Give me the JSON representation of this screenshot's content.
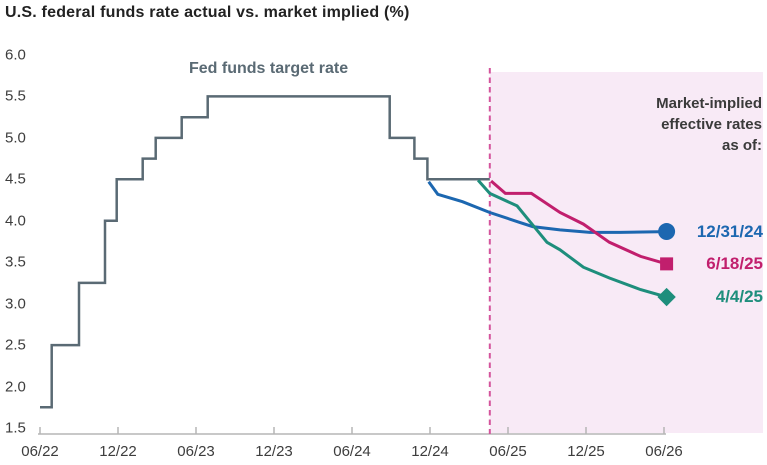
{
  "title": "U.S. federal funds rate actual vs. market implied (%)",
  "annotations": {
    "step_line_label": "Fed funds target rate",
    "forecast_heading": "Market-implied\neffective rates\nas of:"
  },
  "colors": {
    "title_text": "#222222",
    "tick_text": "#3d3d3d",
    "heading_text": "#3a3a3a",
    "step_line": "#5a6a74",
    "axis": "#b5b5b5",
    "forecast_shading": "#f8eaf6",
    "forecast_divider": "#d4549c",
    "blue_series": "#1c67b0",
    "magenta_series": "#c11f6d",
    "teal_series": "#1e8e7c"
  },
  "chart_data": {
    "type": "line",
    "title": "U.S. federal funds rate actual vs. market implied (%)",
    "xlabel": "",
    "ylabel": "",
    "grid": false,
    "ylim": [
      1.5,
      6.0
    ],
    "y_tick_labels": [
      "6.0",
      "5.5",
      "5.0",
      "4.5",
      "4.0",
      "3.5",
      "3.0",
      "2.5",
      "2.0",
      "1.5"
    ],
    "y_tick_values": [
      6.0,
      5.5,
      5.0,
      4.5,
      4.0,
      3.5,
      3.0,
      2.5,
      2.0,
      1.5
    ],
    "x_tick_labels": [
      "06/22",
      "12/22",
      "06/23",
      "12/23",
      "06/24",
      "12/24",
      "06/25",
      "12/25",
      "06/26"
    ],
    "x_tick_months": [
      0,
      6,
      12,
      18,
      24,
      30,
      36,
      42,
      48
    ],
    "x_unit": "months since 06/22 tick",
    "forecast_region_start_month": 34.6,
    "series": [
      {
        "name": "Fed funds target rate",
        "style": "step",
        "color": "#5a6a74",
        "marker": "none",
        "points": [
          [
            0,
            1.75
          ],
          [
            0.9,
            2.5
          ],
          [
            3.0,
            3.25
          ],
          [
            5.0,
            4.0
          ],
          [
            5.9,
            4.5
          ],
          [
            7.9,
            4.75
          ],
          [
            8.9,
            5.0
          ],
          [
            10.9,
            5.25
          ],
          [
            12.9,
            5.5
          ],
          [
            26.9,
            5.0
          ],
          [
            28.8,
            4.75
          ],
          [
            29.8,
            4.5
          ],
          [
            34.6,
            4.5
          ]
        ]
      },
      {
        "name": "12/31/24",
        "style": "line",
        "color": "#1c67b0",
        "marker": "circle",
        "points": [
          [
            29.9,
            4.47
          ],
          [
            30.6,
            4.32
          ],
          [
            32.5,
            4.23
          ],
          [
            34.6,
            4.1
          ],
          [
            36.9,
            3.98
          ],
          [
            37.9,
            3.93
          ],
          [
            40.0,
            3.89
          ],
          [
            42.3,
            3.86
          ],
          [
            44.6,
            3.86
          ],
          [
            48.2,
            3.87
          ]
        ]
      },
      {
        "name": "6/18/25",
        "style": "line",
        "color": "#c11f6d",
        "marker": "square",
        "points": [
          [
            34.7,
            4.48
          ],
          [
            35.8,
            4.33
          ],
          [
            37.8,
            4.33
          ],
          [
            40.0,
            4.1
          ],
          [
            41.8,
            3.96
          ],
          [
            43.8,
            3.74
          ],
          [
            46.2,
            3.57
          ],
          [
            48.2,
            3.48
          ]
        ]
      },
      {
        "name": "4/4/25",
        "style": "line",
        "color": "#1e8e7c",
        "marker": "diamond",
        "points": [
          [
            33.7,
            4.49
          ],
          [
            34.6,
            4.33
          ],
          [
            36.7,
            4.18
          ],
          [
            37.9,
            3.95
          ],
          [
            39.0,
            3.74
          ],
          [
            40.0,
            3.65
          ],
          [
            41.8,
            3.44
          ],
          [
            43.8,
            3.31
          ],
          [
            46.2,
            3.17
          ],
          [
            48.2,
            3.08
          ]
        ]
      }
    ]
  }
}
